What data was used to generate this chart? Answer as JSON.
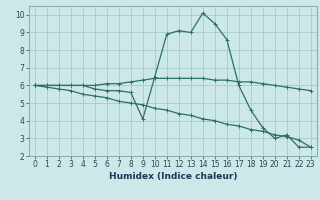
{
  "xlabel": "Humidex (Indice chaleur)",
  "ylabel": "",
  "background_color": "#cce8e8",
  "grid_color": "#aacece",
  "line_color": "#2d7068",
  "xlim": [
    -0.5,
    23.5
  ],
  "ylim": [
    2,
    10.5
  ],
  "xticks": [
    0,
    1,
    2,
    3,
    4,
    5,
    6,
    7,
    8,
    9,
    10,
    11,
    12,
    13,
    14,
    15,
    16,
    17,
    18,
    19,
    20,
    21,
    22,
    23
  ],
  "yticks": [
    2,
    3,
    4,
    5,
    6,
    7,
    8,
    9,
    10
  ],
  "series": [
    {
      "x": [
        0,
        1,
        2,
        3,
        4,
        5,
        6,
        7,
        8,
        9,
        10,
        11,
        12,
        13,
        14,
        15,
        16,
        17,
        18,
        19,
        20,
        21,
        22,
        23
      ],
      "y": [
        6,
        6,
        6,
        6,
        6,
        5.8,
        5.7,
        5.7,
        5.6,
        4.1,
        6.5,
        8.9,
        9.1,
        9.0,
        10.1,
        9.5,
        8.6,
        6.0,
        4.6,
        3.6,
        3.0,
        3.2,
        2.5,
        2.5
      ]
    },
    {
      "x": [
        0,
        1,
        2,
        3,
        4,
        5,
        6,
        7,
        8,
        9,
        10,
        11,
        12,
        13,
        14,
        15,
        16,
        17,
        18,
        19,
        20,
        21,
        22,
        23
      ],
      "y": [
        6.0,
        5.9,
        5.8,
        5.7,
        5.5,
        5.4,
        5.3,
        5.1,
        5.0,
        4.9,
        4.7,
        4.6,
        4.4,
        4.3,
        4.1,
        4.0,
        3.8,
        3.7,
        3.5,
        3.4,
        3.2,
        3.1,
        2.9,
        2.5
      ]
    },
    {
      "x": [
        0,
        1,
        2,
        3,
        4,
        5,
        6,
        7,
        8,
        9,
        10,
        11,
        12,
        13,
        14,
        15,
        16,
        17,
        18,
        19,
        20,
        21,
        22,
        23
      ],
      "y": [
        6.0,
        6.0,
        6.0,
        6.0,
        6.0,
        6.0,
        6.1,
        6.1,
        6.2,
        6.3,
        6.4,
        6.4,
        6.4,
        6.4,
        6.4,
        6.3,
        6.3,
        6.2,
        6.2,
        6.1,
        6.0,
        5.9,
        5.8,
        5.7
      ]
    }
  ]
}
